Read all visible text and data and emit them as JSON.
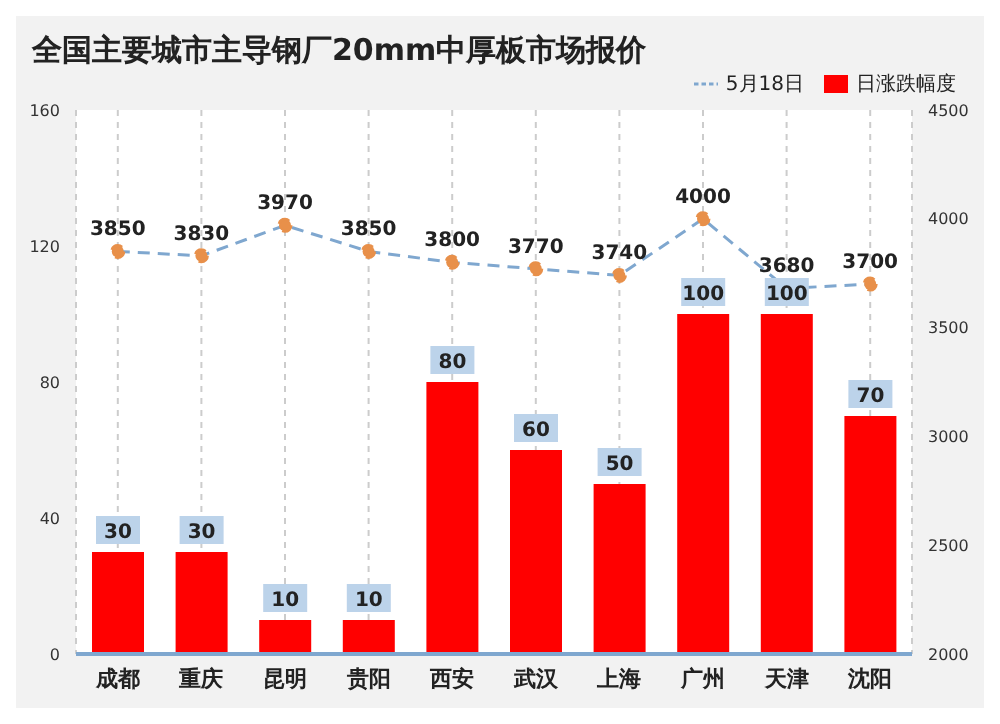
{
  "chart_data": {
    "type": "bar",
    "title": "全国主要城市主导钢厂20mm中厚板市场报价",
    "categories": [
      "成都",
      "重庆",
      "昆明",
      "贵阳",
      "西安",
      "武汉",
      "上海",
      "广州",
      "天津",
      "沈阳"
    ],
    "series": [
      {
        "name": "日涨跌幅度",
        "color": "#ff0000",
        "values": [
          30,
          30,
          10,
          10,
          80,
          60,
          50,
          100,
          100,
          70
        ]
      },
      {
        "name": "5月18日",
        "type": "line",
        "axis": "y2",
        "color": "#7fa7cf",
        "line_style": "dashed",
        "marker": "circle",
        "values": [
          3850,
          3830,
          3970,
          3850,
          3800,
          3770,
          3740,
          4000,
          3680,
          3700
        ]
      }
    ],
    "ylim": [
      0,
      160
    ],
    "yticks": [
      0,
      40,
      80,
      120,
      160
    ],
    "y2lim": [
      2000,
      4500
    ],
    "y2ticks": [
      2000,
      2500,
      3000,
      3500,
      4000,
      4500
    ],
    "grid": "x",
    "legend": "top right",
    "data_labels": true
  }
}
